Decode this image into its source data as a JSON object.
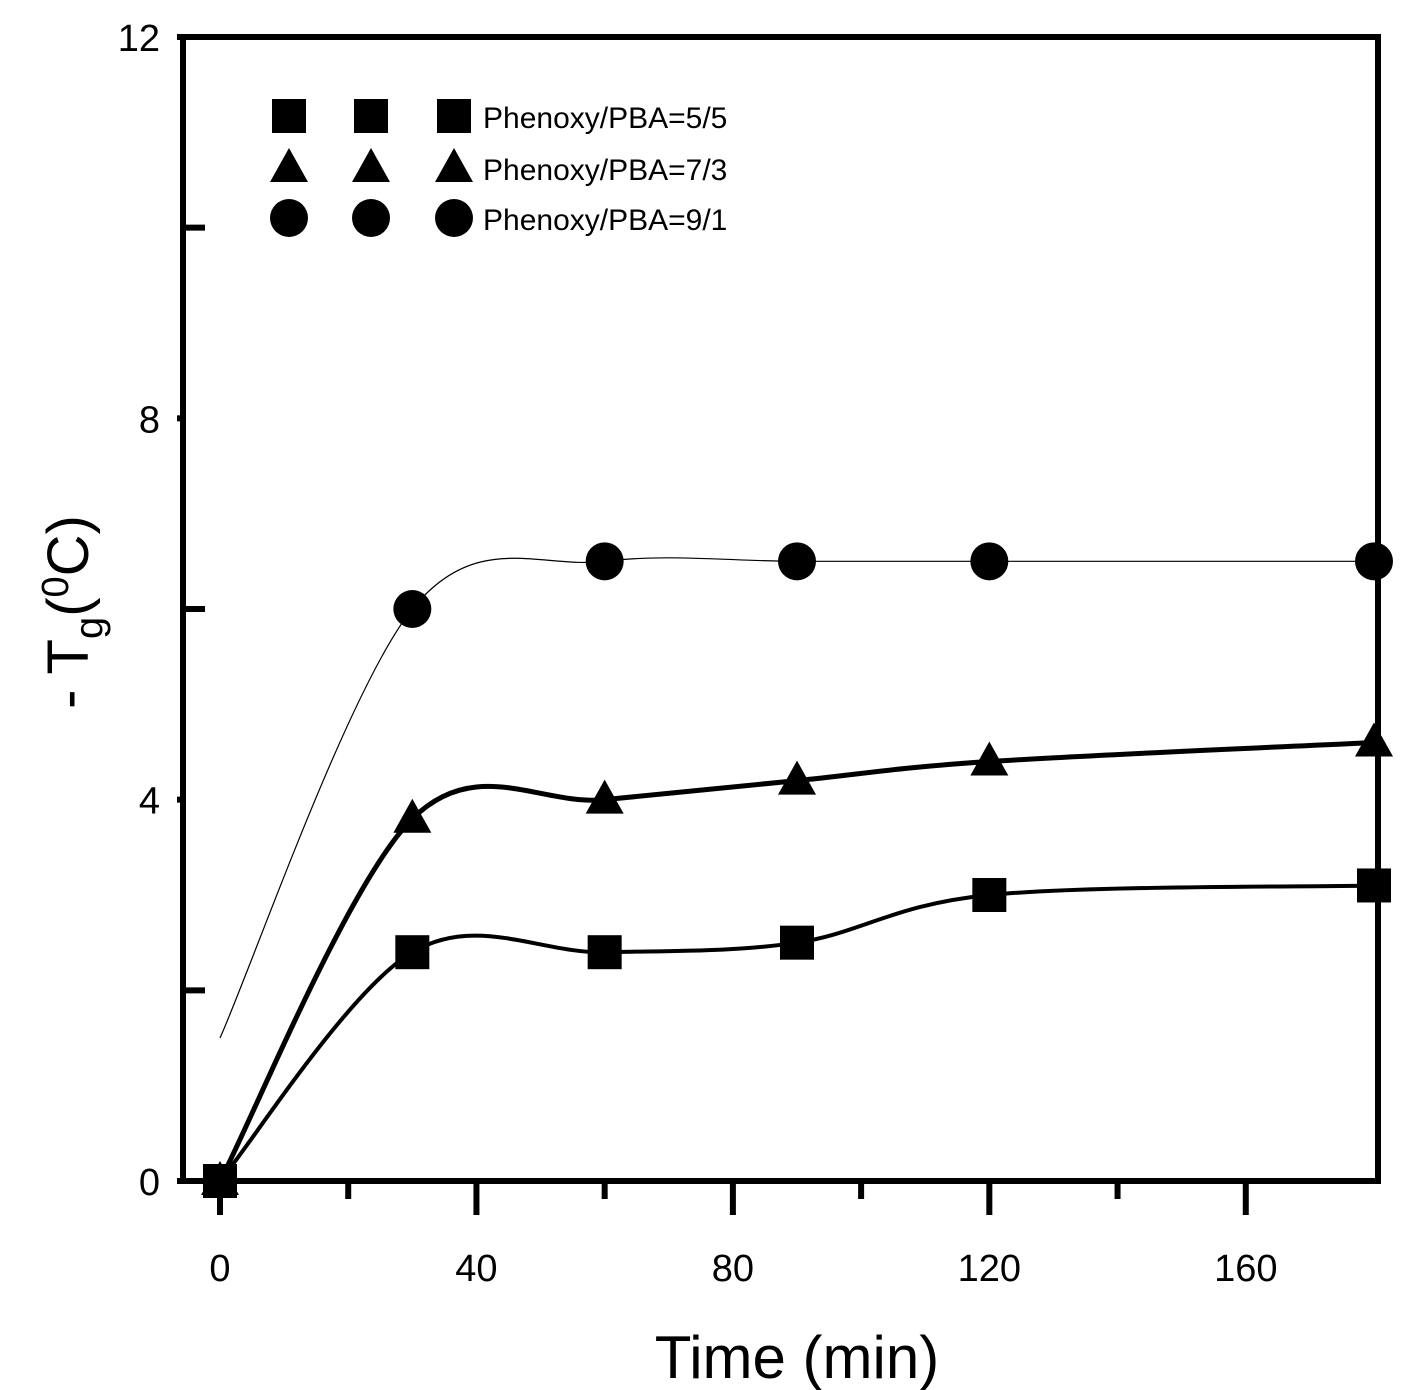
{
  "chart_data": {
    "type": "line",
    "title": "",
    "xlabel": "Time (min)",
    "ylabel_prefix": "- T",
    "ylabel_sub": "g",
    "ylabel_paren_open": "(",
    "ylabel_sup": "0",
    "ylabel_unit": "C)",
    "xlim": [
      0,
      180
    ],
    "ylim": [
      0,
      12
    ],
    "xticks": [
      0,
      40,
      80,
      120,
      160
    ],
    "xticks_minor": [
      20,
      60,
      100,
      140
    ],
    "yticks": [
      0,
      4,
      8,
      12
    ],
    "yticks_minor": [
      2,
      6,
      10
    ],
    "grid": false,
    "legend_position": "top-left",
    "series": [
      {
        "name": "Phenoxy/PBA=5/5",
        "marker": "square",
        "line_weight": "medium",
        "x": [
          0,
          30,
          60,
          90,
          120,
          180
        ],
        "y": [
          0,
          2.4,
          2.4,
          2.5,
          3.0,
          3.1
        ]
      },
      {
        "name": "Phenoxy/PBA=7/3",
        "marker": "triangle",
        "line_weight": "heavy",
        "x": [
          0,
          30,
          60,
          90,
          120,
          180
        ],
        "y": [
          0,
          3.8,
          4.0,
          4.2,
          4.4,
          4.6
        ]
      },
      {
        "name": "Phenoxy/PBA=9/1",
        "marker": "circle",
        "line_weight": "thin",
        "x": [
          30,
          60,
          90,
          120,
          180
        ],
        "y": [
          6.0,
          6.5,
          6.5,
          6.5,
          6.5
        ]
      }
    ]
  }
}
